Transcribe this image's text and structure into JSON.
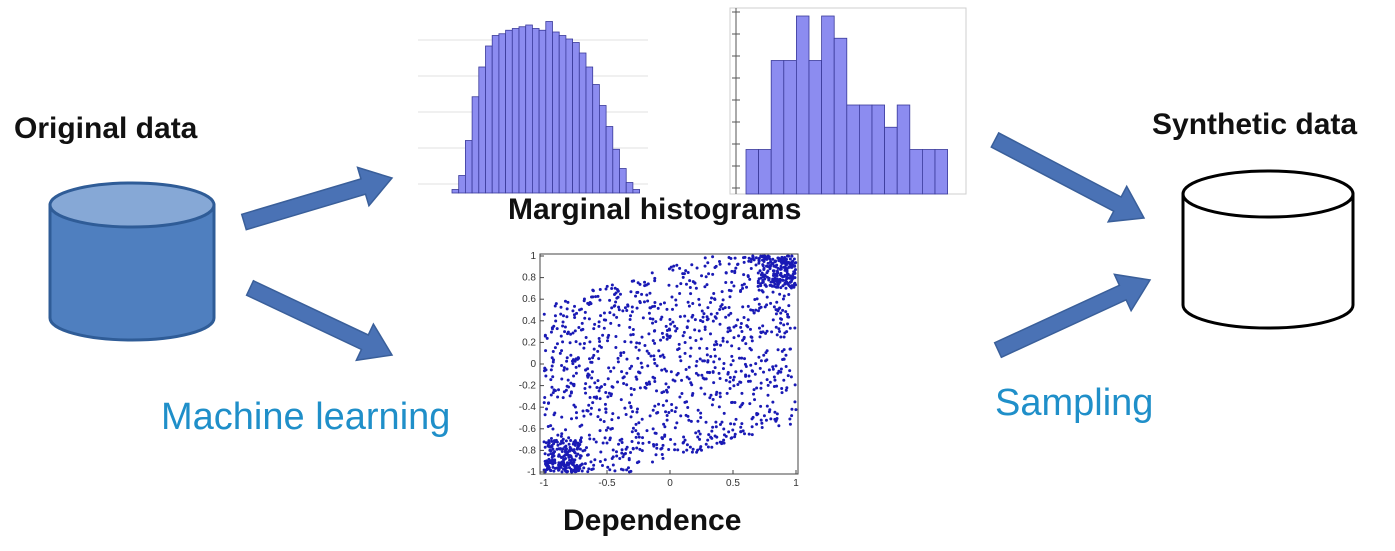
{
  "labels": {
    "original_data": "Original data",
    "synthetic_data": "Synthetic data",
    "marginal_histograms": "Marginal histograms",
    "dependence": "Dependence",
    "machine_learning": "Machine learning",
    "sampling": "Sampling"
  },
  "colors": {
    "original_cylinder_fill": "#4f7fbf",
    "original_cylinder_top": "#86a8d6",
    "synthetic_cylinder_fill": "#ffffff",
    "arrow": "#4a72b5",
    "histogram_bar": "#8c8cf0",
    "scatter_point": "#1a1ab5",
    "accent_text": "#1f8fc9"
  },
  "chart_data": [
    {
      "type": "bar",
      "description_ref": "marginal histogram 1",
      "values": [
        2,
        10,
        30,
        55,
        72,
        84,
        90,
        91,
        93,
        94,
        95,
        96,
        94,
        93,
        98,
        92,
        90,
        88,
        86,
        80,
        72,
        62,
        50,
        38,
        25,
        14,
        6,
        2
      ]
    },
    {
      "type": "bar",
      "description_ref": "marginal histogram 2",
      "values": [
        2,
        2,
        6,
        6,
        8,
        6,
        8,
        7,
        4,
        4,
        4,
        3,
        4,
        2,
        2,
        2
      ]
    },
    {
      "type": "scatter",
      "description_ref": "dependence scatter",
      "x_ticks": [
        "-1",
        "-0.5",
        "0",
        "0.5",
        "1"
      ],
      "y_ticks": [
        "1",
        "0.8",
        "0.6",
        "0.4",
        "0.2",
        "0",
        "-0.2",
        "-0.4",
        "-0.6",
        "-0.8",
        "-1"
      ],
      "xlim": [
        -1,
        1
      ],
      "ylim": [
        -1,
        1
      ],
      "point_count": 1500
    }
  ]
}
